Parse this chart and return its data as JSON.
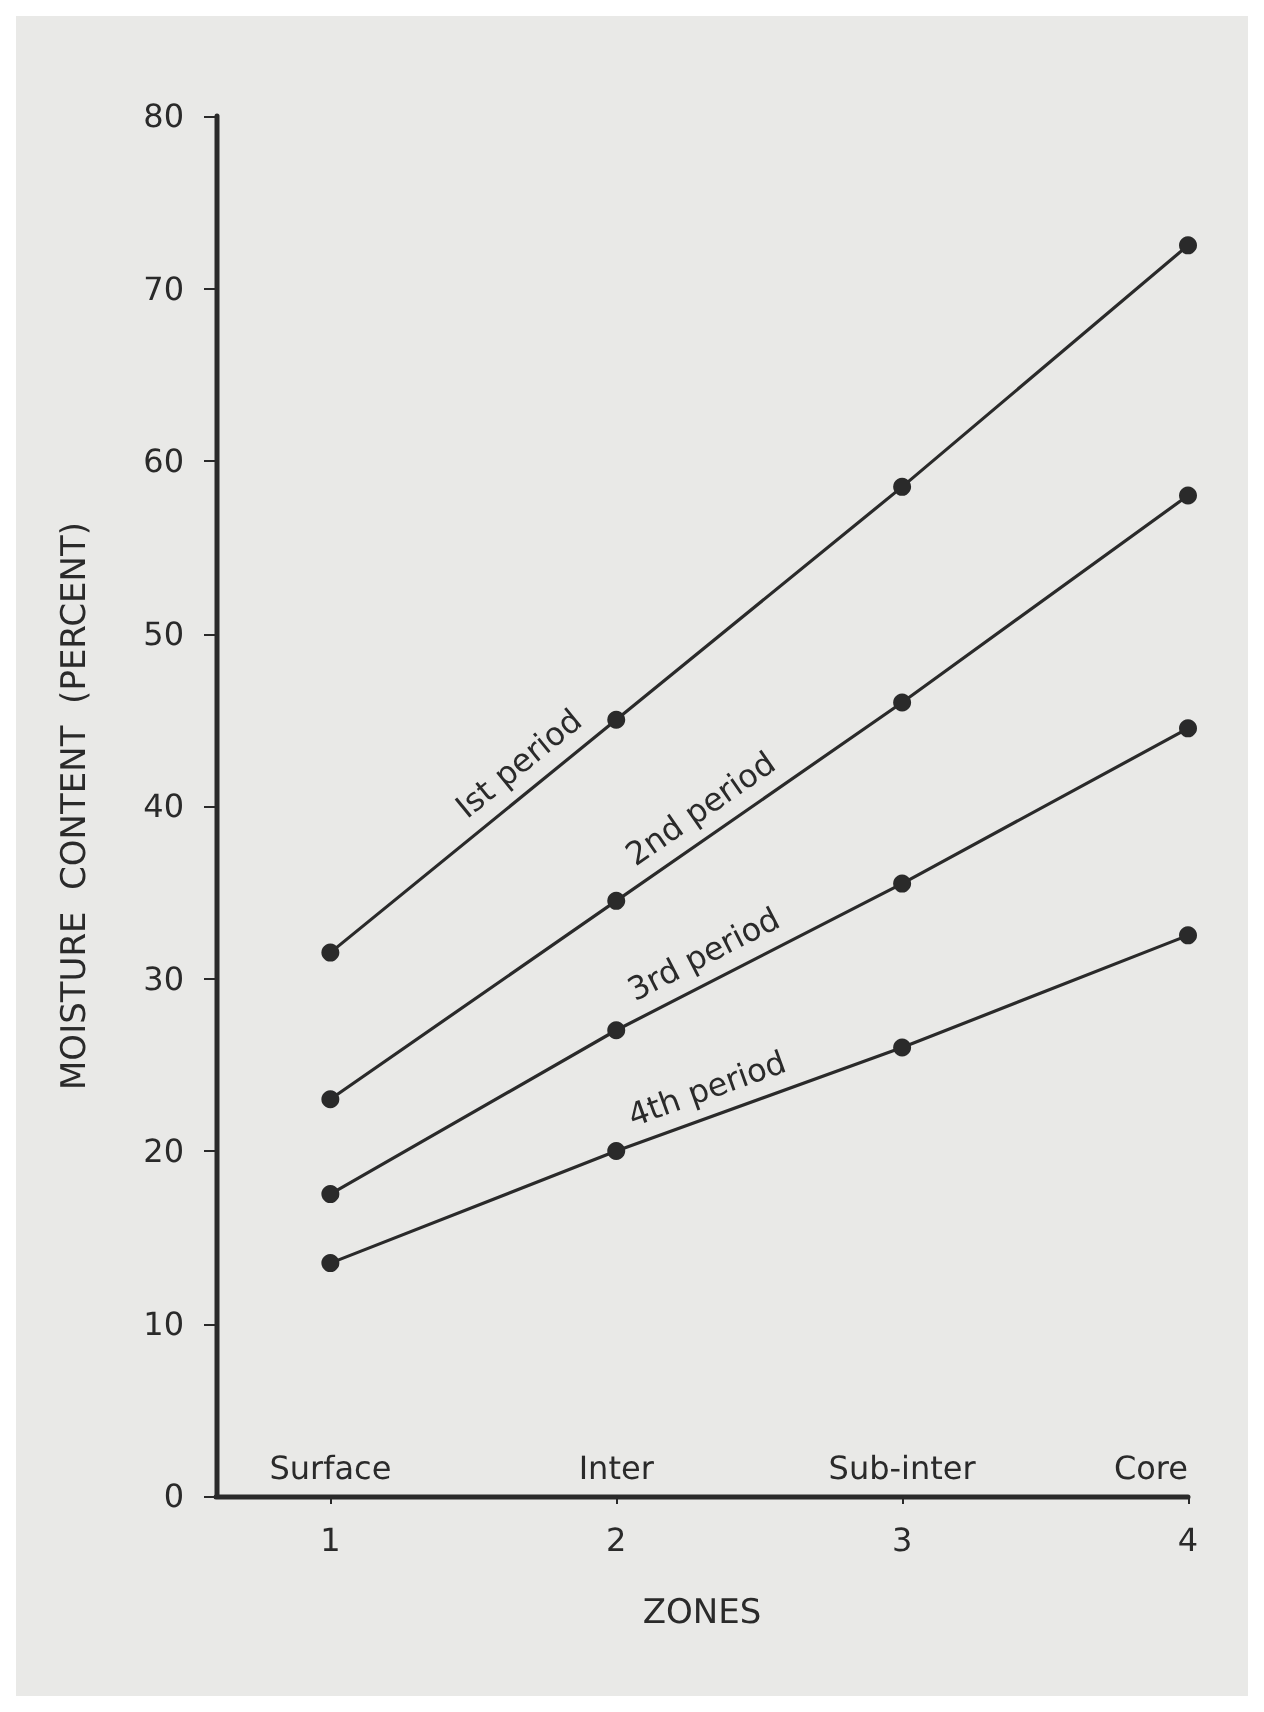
{
  "chart_data": {
    "type": "line",
    "xlabel": "ZONES",
    "ylabel": "MOISTURE  CONTENT  (PERCENT)",
    "x": [
      1,
      2,
      3,
      4
    ],
    "series": [
      {
        "name": "Ist period",
        "color": "#2a2a2a",
        "values": [
          31.5,
          45,
          58.5,
          72.5
        ]
      },
      {
        "name": "2nd period",
        "color": "#2a2a2a",
        "values": [
          23,
          34.5,
          46,
          58
        ]
      },
      {
        "name": "3rd period",
        "color": "#2a2a2a",
        "values": [
          17.5,
          27,
          35.5,
          44.5
        ]
      },
      {
        "name": "4th period",
        "color": "#2a2a2a",
        "values": [
          13.5,
          20,
          26,
          32.5
        ]
      }
    ],
    "annotations": [
      "Surface",
      "Inter",
      "Sub-inter",
      "Core"
    ],
    "xlim": [
      0.6,
      4
    ],
    "xticks": [
      1,
      2,
      3,
      4
    ],
    "ylim": [
      0,
      80
    ],
    "yticks": [
      0,
      10,
      20,
      30,
      40,
      50,
      60,
      70,
      80
    ],
    "grid": false,
    "legend": false,
    "marker": "circle",
    "line_style": "solid"
  }
}
